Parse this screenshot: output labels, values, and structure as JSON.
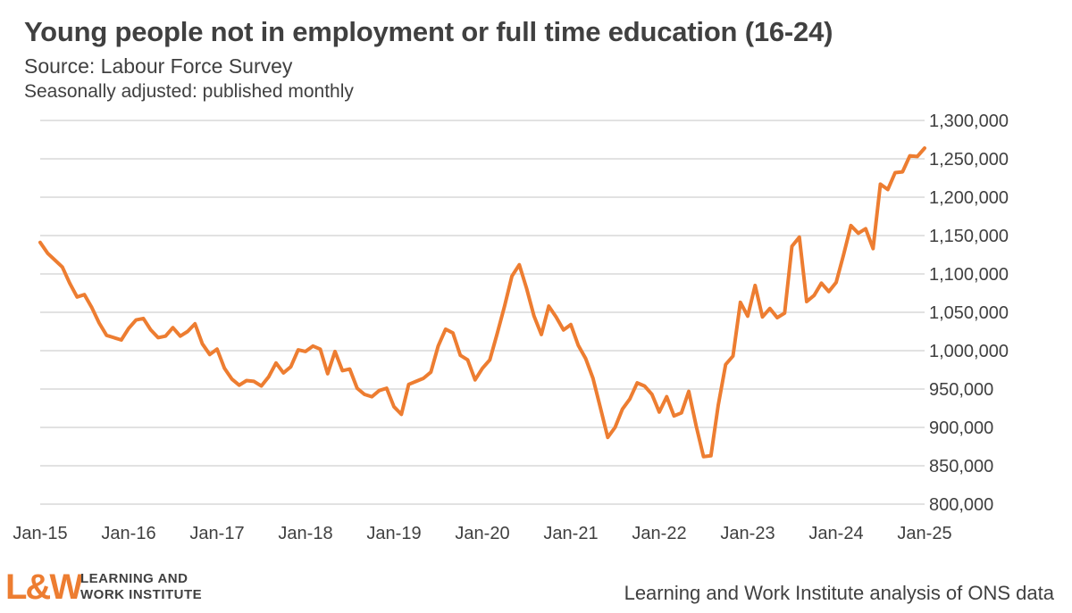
{
  "header": {
    "title": "Young people not in employment or full time education (16-24)",
    "source": "Source: Labour Force Survey",
    "note": "Seasonally adjusted: published monthly"
  },
  "footer": {
    "logo_mark": "L&W",
    "logo_line1": "LEARNING AND",
    "logo_line2": "WORK INSTITUTE",
    "credit": "Learning and Work Institute analysis of ONS data"
  },
  "colors": {
    "line": "#ed7d31",
    "grid": "#d9d9d9",
    "text": "#404040"
  },
  "chart_data": {
    "type": "line",
    "title": "Young people not in employment or full time education (16-24)",
    "xlabel": "",
    "ylabel": "",
    "ylim": [
      800000,
      1300000
    ],
    "yticks": [
      800000,
      850000,
      900000,
      950000,
      1000000,
      1050000,
      1100000,
      1150000,
      1200000,
      1250000,
      1300000
    ],
    "ytick_labels": [
      "800,000",
      "850,000",
      "900,000",
      "950,000",
      "1,000,000",
      "1,050,000",
      "1,100,000",
      "1,150,000",
      "1,200,000",
      "1,250,000",
      "1,300,000"
    ],
    "xtick_labels": [
      "Jan-15",
      "Jan-16",
      "Jan-17",
      "Jan-18",
      "Jan-19",
      "Jan-20",
      "Jan-21",
      "Jan-22",
      "Jan-23",
      "Jan-24",
      "Jan-25"
    ],
    "y_axis_position": "right",
    "grid": true,
    "legend": "none",
    "x_start": "Jan-15",
    "frequency": "monthly",
    "series": [
      {
        "values": [
          1141000,
          1127000,
          1118000,
          1109000,
          1088000,
          1070000,
          1073000,
          1056000,
          1036000,
          1020000,
          1017000,
          1014000,
          1029000,
          1040000,
          1042000,
          1027000,
          1017000,
          1019000,
          1030000,
          1019000,
          1025000,
          1035000,
          1009000,
          995000,
          1002000,
          977000,
          963000,
          955000,
          961000,
          960000,
          954000,
          966000,
          984000,
          971000,
          979000,
          1001000,
          999000,
          1006000,
          1002000,
          970000,
          999000,
          974000,
          976000,
          951000,
          943000,
          940000,
          948000,
          951000,
          927000,
          917000,
          956000,
          960000,
          964000,
          972000,
          1006000,
          1028000,
          1023000,
          994000,
          988000,
          962000,
          977000,
          988000,
          1022000,
          1058000,
          1097000,
          1112000,
          1081000,
          1045000,
          1021000,
          1058000,
          1044000,
          1027000,
          1034000,
          1007000,
          990000,
          964000,
          926000,
          887000,
          900000,
          924000,
          937000,
          958000,
          954000,
          943000,
          920000,
          940000,
          915000,
          919000,
          947000,
          902000,
          862000,
          863000,
          929000,
          982000,
          993000,
          1063000,
          1045000,
          1085000,
          1044000,
          1055000,
          1043000,
          1049000,
          1136000,
          1148000,
          1064000,
          1072000,
          1088000,
          1077000,
          1089000,
          1125000,
          1163000,
          1153000,
          1159000,
          1133000,
          1217000,
          1210000,
          1232000,
          1233000,
          1254000,
          1253000,
          1264000
        ]
      }
    ]
  }
}
